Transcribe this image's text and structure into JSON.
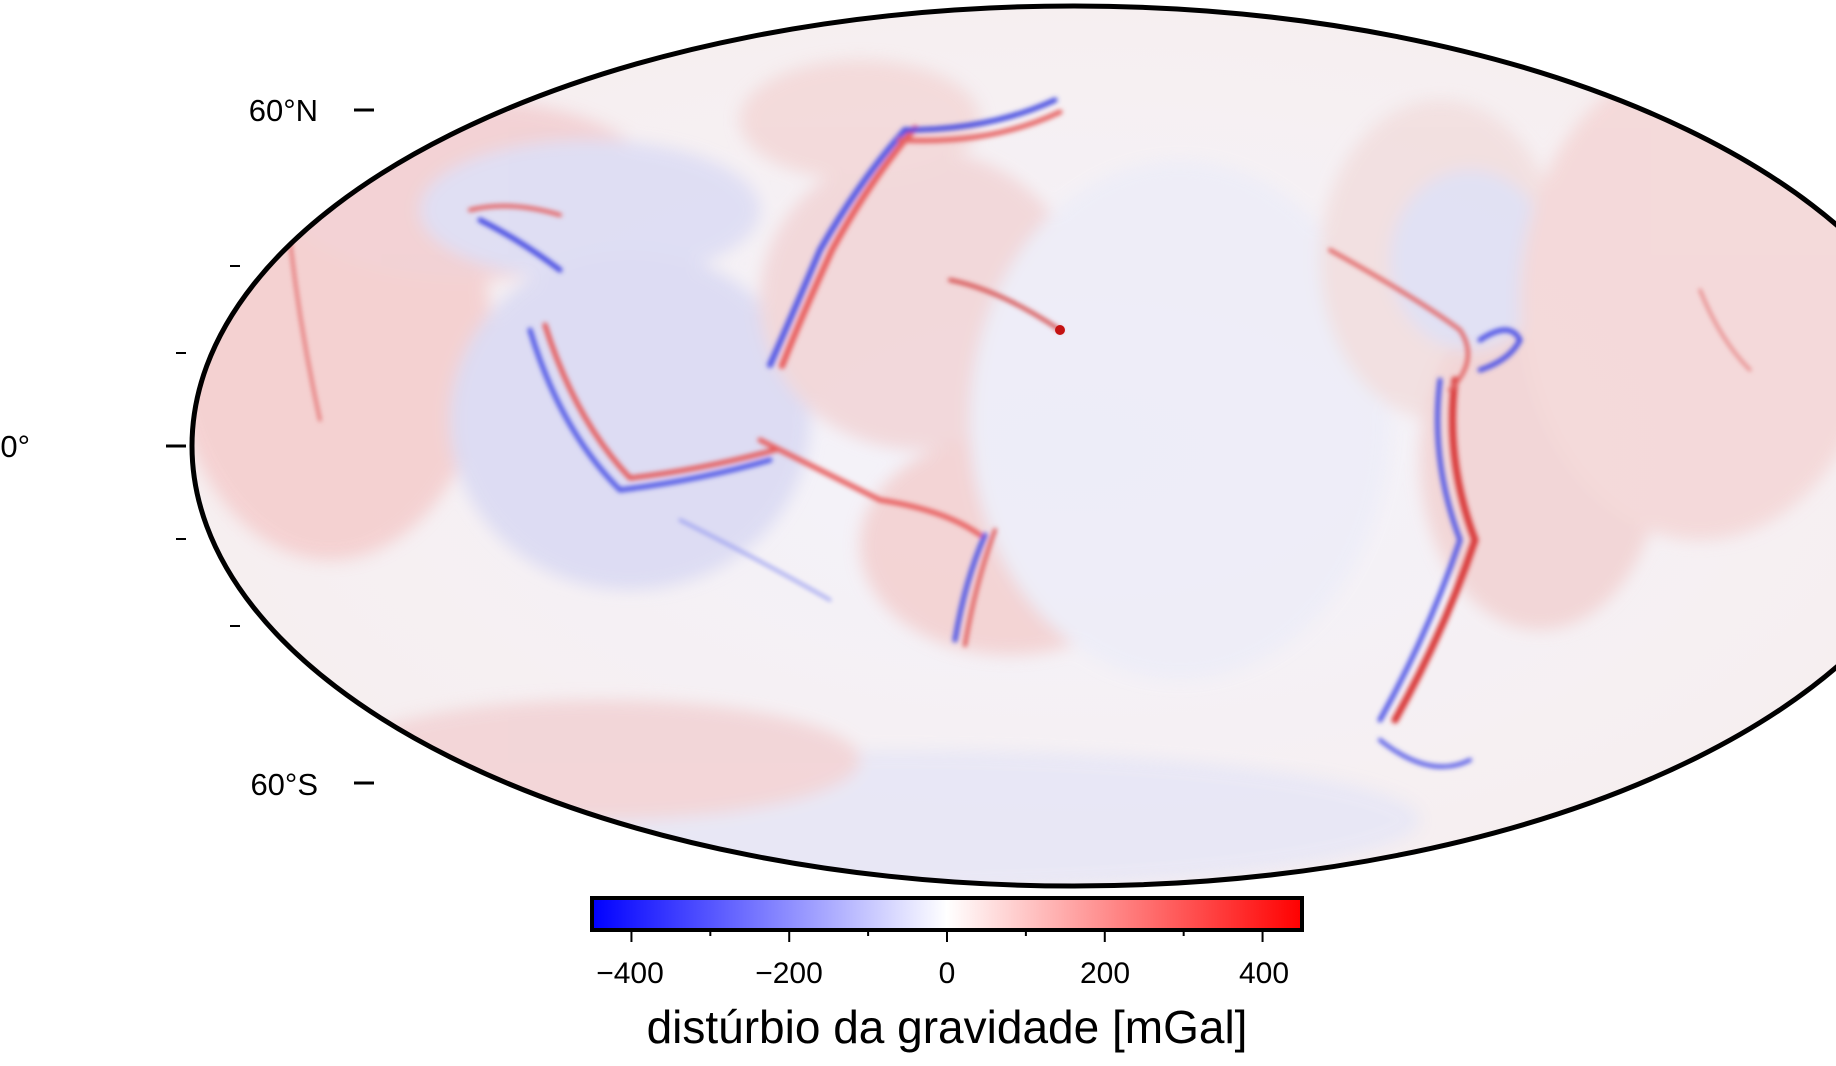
{
  "map": {
    "projection": "Mollweide",
    "latitude_labels": [
      "60°N",
      "0°",
      "60°S"
    ],
    "color_scale": {
      "low": "#0000ff",
      "mid": "#ffffff",
      "high": "#ff0000"
    }
  },
  "colorbar": {
    "label": "distúrbio da gravidade [mGal]",
    "tick_labels": [
      "−400",
      "−200",
      "0",
      "200",
      "400"
    ],
    "range": [
      -450,
      450
    ]
  }
}
